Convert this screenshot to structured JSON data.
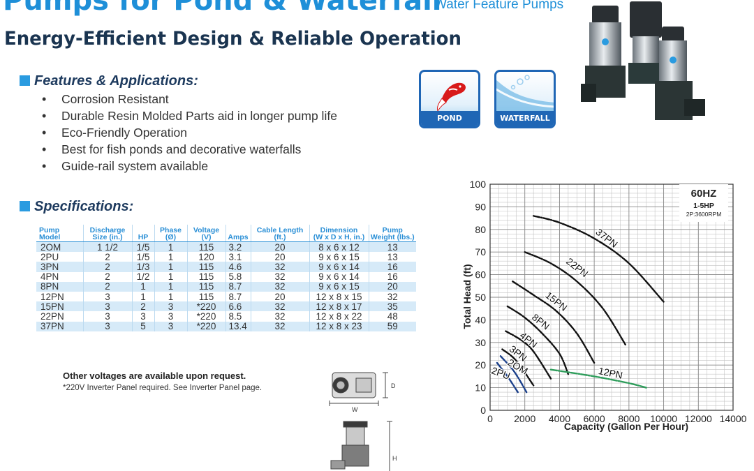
{
  "header": {
    "title": "Pumps for Pond & Waterfall",
    "subtitle": "Water Feature Pumps",
    "tagline": "Energy-Efficient Design & Reliable Operation"
  },
  "features": {
    "heading": "Features & Applications:",
    "items": [
      "Corrosion Resistant",
      "Durable Resin Molded Parts aid in longer pump life",
      "Eco-Friendly Operation",
      "Best for fish ponds and decorative waterfalls",
      "Guide-rail system available"
    ]
  },
  "badges": {
    "pond": "POND",
    "waterfall": "WATERFALL"
  },
  "specs": {
    "heading": "Specifications:",
    "columns": [
      [
        "Pump",
        "Model"
      ],
      [
        "Discharge",
        "Size (in.)"
      ],
      [
        "HP",
        ""
      ],
      [
        "Phase",
        "(Ø)"
      ],
      [
        "Voltage",
        "(V)"
      ],
      [
        "Amps",
        ""
      ],
      [
        "Cable Length",
        "(ft.)"
      ],
      [
        "Dimension",
        "(W x D x H, in.)"
      ],
      [
        "Pump",
        "Weight (lbs.)"
      ]
    ],
    "rows": [
      [
        "2OM",
        "1 1/2",
        "1/5",
        "1",
        "115",
        "3.2",
        "20",
        "8 x 6 x 12",
        "13"
      ],
      [
        "2PU",
        "2",
        "1/5",
        "1",
        "120",
        "3.1",
        "20",
        "9 x 6 x 15",
        "13"
      ],
      [
        "3PN",
        "2",
        "1/3",
        "1",
        "115",
        "4.6",
        "32",
        "9 x 6 x 14",
        "16"
      ],
      [
        "4PN",
        "2",
        "1/2",
        "1",
        "115",
        "5.8",
        "32",
        "9 x 6 x 14",
        "16"
      ],
      [
        "8PN",
        "2",
        "1",
        "1",
        "115",
        "8.7",
        "32",
        "9 x 6 x 15",
        "20"
      ],
      [
        "12PN",
        "3",
        "1",
        "1",
        "115",
        "8.7",
        "20",
        "12 x 8 x 15",
        "32"
      ],
      [
        "15PN",
        "3",
        "2",
        "3",
        "*220",
        "6.6",
        "32",
        "12 x 8 x 17",
        "35"
      ],
      [
        "22PN",
        "3",
        "3",
        "3",
        "*220",
        "8.5",
        "32",
        "12 x 8 x 22",
        "48"
      ],
      [
        "37PN",
        "3",
        "5",
        "3",
        "*220",
        "13.4",
        "32",
        "12 x 8 x 23",
        "59"
      ]
    ],
    "note_bold": "Other voltages are available upon request.",
    "note_small": "*220V Inverter Panel required. See Inverter Panel page."
  },
  "drawing": {
    "d_label": "D",
    "w_label": "W",
    "h_label": "H"
  },
  "chart_data": {
    "type": "line",
    "xlabel": "Capacity (Gallon Per Hour)",
    "ylabel": "Total Head (ft)",
    "xlim": [
      0,
      14000
    ],
    "ylim": [
      0,
      100
    ],
    "xticks": [
      0,
      2000,
      4000,
      6000,
      8000,
      10000,
      12000,
      14000
    ],
    "yticks": [
      0,
      10,
      20,
      30,
      40,
      50,
      60,
      70,
      80,
      90,
      100
    ],
    "grid": true,
    "legend_box": [
      "60HZ",
      "1-5HP",
      "2P:3600RPM"
    ],
    "series": [
      {
        "name": "37PN",
        "color": "#111111",
        "x": [
          2500,
          4000,
          6000,
          8000,
          10000
        ],
        "y": [
          86,
          83,
          76,
          65,
          48
        ]
      },
      {
        "name": "22PN",
        "color": "#111111",
        "x": [
          2000,
          3500,
          5000,
          6500,
          7800
        ],
        "y": [
          70,
          65,
          57,
          45,
          29
        ]
      },
      {
        "name": "15PN",
        "color": "#111111",
        "x": [
          1300,
          2500,
          3800,
          5000,
          6000
        ],
        "y": [
          57,
          51,
          44,
          34,
          21
        ]
      },
      {
        "name": "8PN",
        "color": "#111111",
        "x": [
          1000,
          2000,
          3000,
          4000,
          4500
        ],
        "y": [
          46,
          41,
          34,
          25,
          16
        ]
      },
      {
        "name": "4PN",
        "color": "#111111",
        "x": [
          900,
          1800,
          2500,
          3500
        ],
        "y": [
          35,
          31,
          26,
          14
        ]
      },
      {
        "name": "3PN",
        "color": "#111111",
        "x": [
          700,
          1500,
          2500
        ],
        "y": [
          27,
          22,
          11
        ]
      },
      {
        "name": "2OM",
        "color": "#1a3f8a",
        "x": [
          600,
          1400,
          2100
        ],
        "y": [
          24,
          17,
          8
        ]
      },
      {
        "name": "2PU",
        "color": "#1a3f8a",
        "x": [
          400,
          1000,
          1600
        ],
        "y": [
          21,
          15,
          8
        ]
      },
      {
        "name": "12PN",
        "color": "#2e9d5b",
        "x": [
          3500,
          6000,
          8000,
          9000
        ],
        "y": [
          18,
          15,
          12,
          10
        ]
      }
    ],
    "labels": [
      {
        "text": "37PN",
        "x": 6600,
        "y": 75,
        "angle": 38
      },
      {
        "text": "22PN",
        "x": 4900,
        "y": 62,
        "angle": 38
      },
      {
        "text": "15PN",
        "x": 3700,
        "y": 47,
        "angle": 38
      },
      {
        "text": "8PN",
        "x": 2800,
        "y": 38,
        "angle": 38
      },
      {
        "text": "4PN",
        "x": 2100,
        "y": 30,
        "angle": 38
      },
      {
        "text": "3PN",
        "x": 1500,
        "y": 24,
        "angle": 38
      },
      {
        "text": "2OM",
        "x": 1500,
        "y": 18,
        "angle": 30
      },
      {
        "text": "2PU",
        "x": 550,
        "y": 15,
        "angle": 20
      },
      {
        "text": "12PN",
        "x": 6900,
        "y": 15,
        "angle": 12
      }
    ]
  }
}
